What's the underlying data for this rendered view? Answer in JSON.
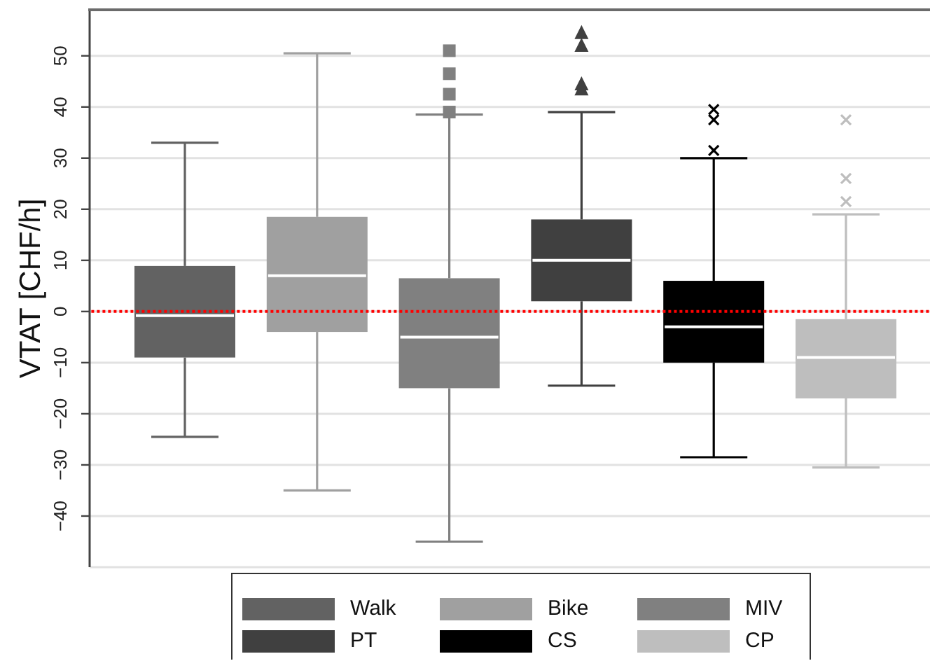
{
  "chart_data": {
    "type": "box",
    "ylabel": "VTAT [CHF/h]",
    "categories": [
      null
    ],
    "series": [
      {
        "name": "Walk",
        "color": "#626262",
        "boxes": [
          {
            "low": -24.5,
            "q1": -9,
            "median": -0.8,
            "q3": 8.9,
            "high": 33
          }
        ]
      },
      {
        "name": "Bike",
        "color": "#a0a0a0",
        "boxes": [
          {
            "low": -35,
            "q1": -4,
            "median": 7,
            "q3": 18.5,
            "high": 50.5
          }
        ]
      },
      {
        "name": "MIV",
        "color": "#808080",
        "marker": "square",
        "boxes": [
          {
            "low": -45,
            "q1": -15,
            "median": -5,
            "q3": 6.5,
            "high": 38.5,
            "outliers": [
              51,
              46.5,
              42.5,
              39
            ]
          }
        ]
      },
      {
        "name": "PT",
        "color": "#404040",
        "marker": "triangle",
        "boxes": [
          {
            "low": -14.5,
            "q1": 2,
            "median": 10,
            "q3": 18,
            "high": 39,
            "outliers": [
              54.5,
              52,
              44.5,
              43.5
            ]
          }
        ]
      },
      {
        "name": "CS",
        "color": "#000000",
        "marker": "cross",
        "boxes": [
          {
            "low": -28.5,
            "q1": -10,
            "median": -3,
            "q3": 6,
            "high": 30,
            "outliers": [
              39.5,
              37.5,
              31.5
            ]
          }
        ]
      },
      {
        "name": "CP",
        "color": "#bebebe",
        "marker": "cross",
        "boxes": [
          {
            "low": -30.5,
            "q1": -17,
            "median": -9,
            "q3": -1.5,
            "high": 19,
            "outliers": [
              37.5,
              26,
              21.5
            ]
          }
        ]
      }
    ],
    "ylim": [
      -50,
      59
    ],
    "yticks": [
      {
        "value": -40,
        "label": "−40"
      },
      {
        "value": -30,
        "label": "−30"
      },
      {
        "value": -20,
        "label": "−20"
      },
      {
        "value": -10,
        "label": "−10"
      },
      0,
      10,
      20,
      30,
      40,
      50
    ],
    "grid": "y",
    "legend": "bottom",
    "tick_labels": "y",
    "ref_lines": [
      {
        "axis": "y",
        "value": 0,
        "color": "#ff0000",
        "line_style": "dotted"
      }
    ]
  }
}
